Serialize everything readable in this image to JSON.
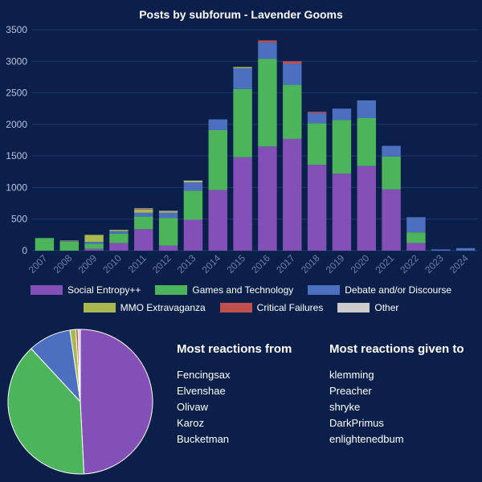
{
  "chart_data": [
    {
      "type": "bar",
      "stacked": true,
      "title": "Posts by subforum - Lavender Gooms",
      "categories": [
        "2007",
        "2008",
        "2009",
        "2010",
        "2011",
        "2012",
        "2013",
        "2014",
        "2015",
        "2016",
        "2017",
        "2018",
        "2019",
        "2020",
        "2021",
        "2022",
        "2023",
        "2024"
      ],
      "ylim": [
        0,
        3500
      ],
      "yticks": [
        0,
        500,
        1000,
        1500,
        2000,
        2500,
        3000,
        3500
      ],
      "grid": true,
      "legend_position": "bottom",
      "series": [
        {
          "name": "Social Entropy++",
          "color": "#8350b8",
          "values": [
            0,
            0,
            30,
            120,
            340,
            80,
            490,
            960,
            1480,
            1650,
            1770,
            1360,
            1220,
            1340,
            970,
            120,
            0,
            0
          ]
        },
        {
          "name": "Games and Technology",
          "color": "#4cb55c",
          "values": [
            200,
            140,
            80,
            150,
            200,
            440,
            460,
            950,
            1080,
            1390,
            860,
            660,
            850,
            760,
            520,
            170,
            0,
            0
          ]
        },
        {
          "name": "Debate and/or Discourse",
          "color": "#4d6fbf",
          "values": [
            0,
            10,
            30,
            40,
            60,
            80,
            130,
            170,
            330,
            260,
            330,
            160,
            180,
            280,
            170,
            240,
            20,
            40
          ]
        },
        {
          "name": "MMO Extravaganza",
          "color": "#a8b84f",
          "values": [
            0,
            10,
            110,
            20,
            50,
            20,
            20,
            0,
            20,
            0,
            0,
            0,
            0,
            0,
            0,
            0,
            0,
            0
          ]
        },
        {
          "name": "Critical Failures",
          "color": "#c0504d",
          "values": [
            0,
            0,
            0,
            0,
            10,
            0,
            0,
            0,
            0,
            30,
            40,
            20,
            0,
            0,
            0,
            0,
            0,
            0
          ]
        },
        {
          "name": "Other",
          "color": "#cccccc",
          "values": [
            0,
            0,
            0,
            0,
            10,
            10,
            10,
            0,
            0,
            0,
            0,
            0,
            0,
            0,
            0,
            0,
            0,
            0
          ]
        }
      ]
    },
    {
      "type": "pie",
      "slices": [
        {
          "name": "Social Entropy++",
          "color": "#8350b8",
          "value": 49.2
        },
        {
          "name": "Games and Technology",
          "color": "#4cb55c",
          "value": 38.9
        },
        {
          "name": "Debate and/or Discourse",
          "color": "#4d6fbf",
          "value": 9.6
        },
        {
          "name": "MMO Extravaganza",
          "color": "#a8b84f",
          "value": 1.3
        },
        {
          "name": "Critical Failures",
          "color": "#c0504d",
          "value": 0.5
        },
        {
          "name": "Other",
          "color": "#cccccc",
          "value": 0.5
        }
      ]
    }
  ],
  "lists": {
    "from": {
      "title": "Most reactions from",
      "items": [
        "Fencingsax",
        "Elvenshae",
        "Olivaw",
        "Karoz",
        "Bucketman"
      ]
    },
    "given": {
      "title": "Most reactions given to",
      "items": [
        "klemming",
        "Preacher",
        "shryke",
        "DarkPrimus",
        "enlightenedbum"
      ]
    }
  },
  "colors": {
    "background": "#0b1f4b",
    "grid": "#22386a",
    "tick_label": "#b8c4dd",
    "x_tick_label": "#6e7fa5"
  }
}
